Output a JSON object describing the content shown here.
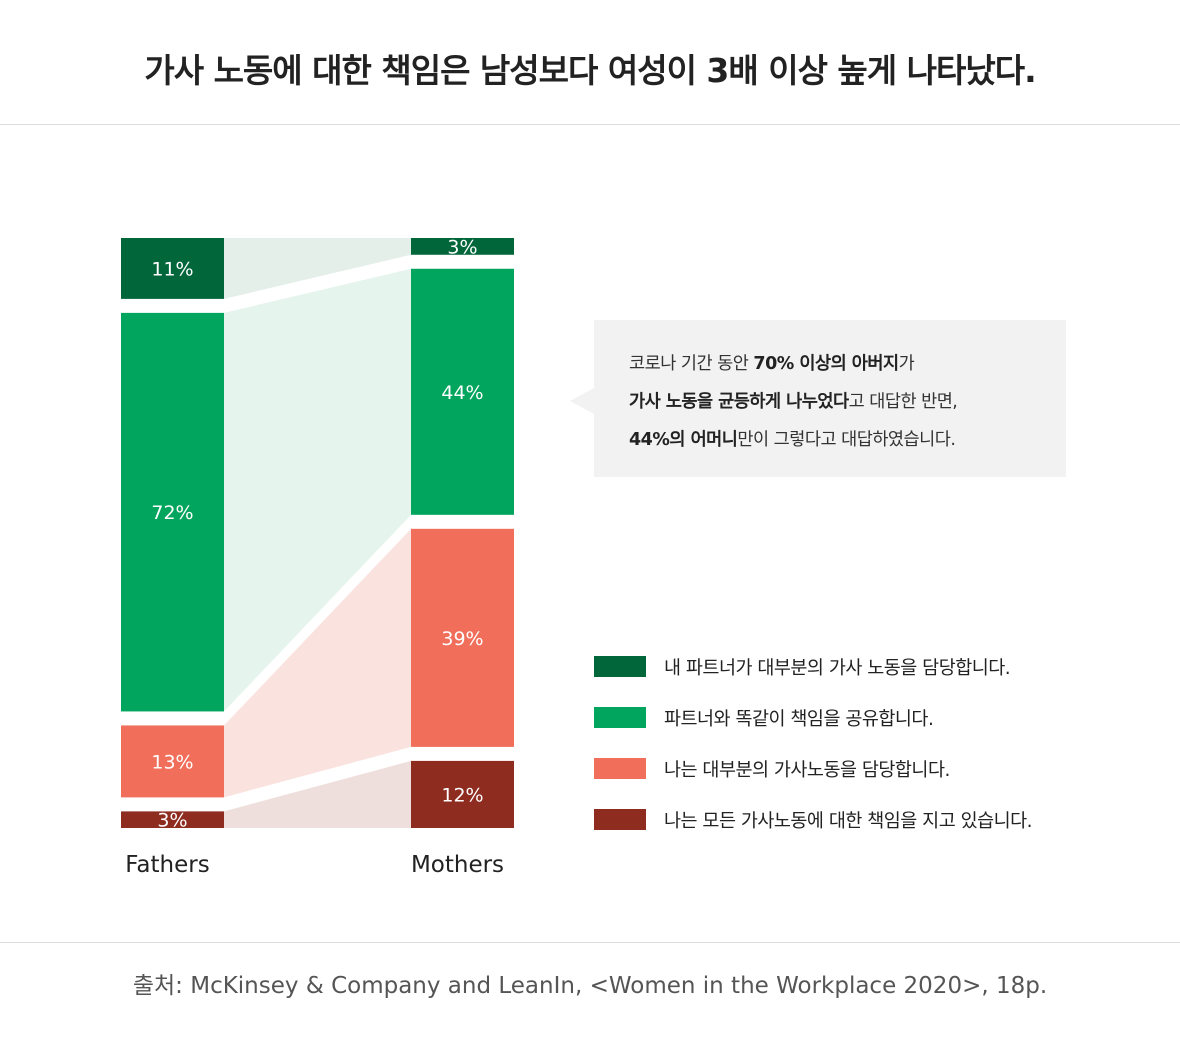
{
  "title": "가사 노동에 대한 책임은 남성보다 여성이 3배 이상 높게 나타났다.",
  "source": "출처: McKinsey & Company and LeanIn, <Women in the Workplace 2020>, 18p.",
  "colors": {
    "mostly_partner": "#02663b",
    "shared_equally": "#02a55d",
    "mostly_me": "#f06e5a",
    "all_me": "#8e2c20",
    "flow_mostly_partner": "#e4efe9",
    "flow_shared_equally": "#e5f4ec",
    "flow_mostly_me": "#fae3df",
    "flow_all_me": "#efdfdc"
  },
  "callout": {
    "line1": [
      {
        "text": "코로나 기간 동안 ",
        "bold": false
      },
      {
        "text": "70% 이상의 아버지",
        "bold": true
      },
      {
        "text": "가",
        "bold": false
      }
    ],
    "line2": [
      {
        "text": "가사 노동을 균등하게 나누었다",
        "bold": true
      },
      {
        "text": "고 대답한 반면,",
        "bold": false
      }
    ],
    "line3": [
      {
        "text": "44%의 어머니",
        "bold": true
      },
      {
        "text": "만이 그렇다고 대답하였습니다.",
        "bold": false
      }
    ]
  },
  "chart_data": {
    "type": "bar",
    "stacked": true,
    "normalized": true,
    "categories": [
      "Fathers",
      "Mothers"
    ],
    "series": [
      {
        "name": "내 파트너가 대부분의 가사 노동을 담당합니다.",
        "values": [
          11,
          3
        ],
        "labels": [
          "11%",
          "3%"
        ],
        "color": "#02663b"
      },
      {
        "name": "파트너와 똑같이 책임을 공유합니다.",
        "values": [
          72,
          44
        ],
        "labels": [
          "72%",
          "44%"
        ],
        "color": "#02a55d"
      },
      {
        "name": "나는 대부분의 가사노동을 담당합니다.",
        "values": [
          13,
          39
        ],
        "labels": [
          "13%",
          "39%"
        ],
        "color": "#f06e5a"
      },
      {
        "name": "나는 모든 가사노동에 대한 책임을 지고 있습니다.",
        "values": [
          3,
          12
        ],
        "labels": [
          "3%",
          "12%"
        ],
        "color": "#8e2c20"
      }
    ],
    "unit": "%",
    "legend_position": "right",
    "grid": false
  }
}
